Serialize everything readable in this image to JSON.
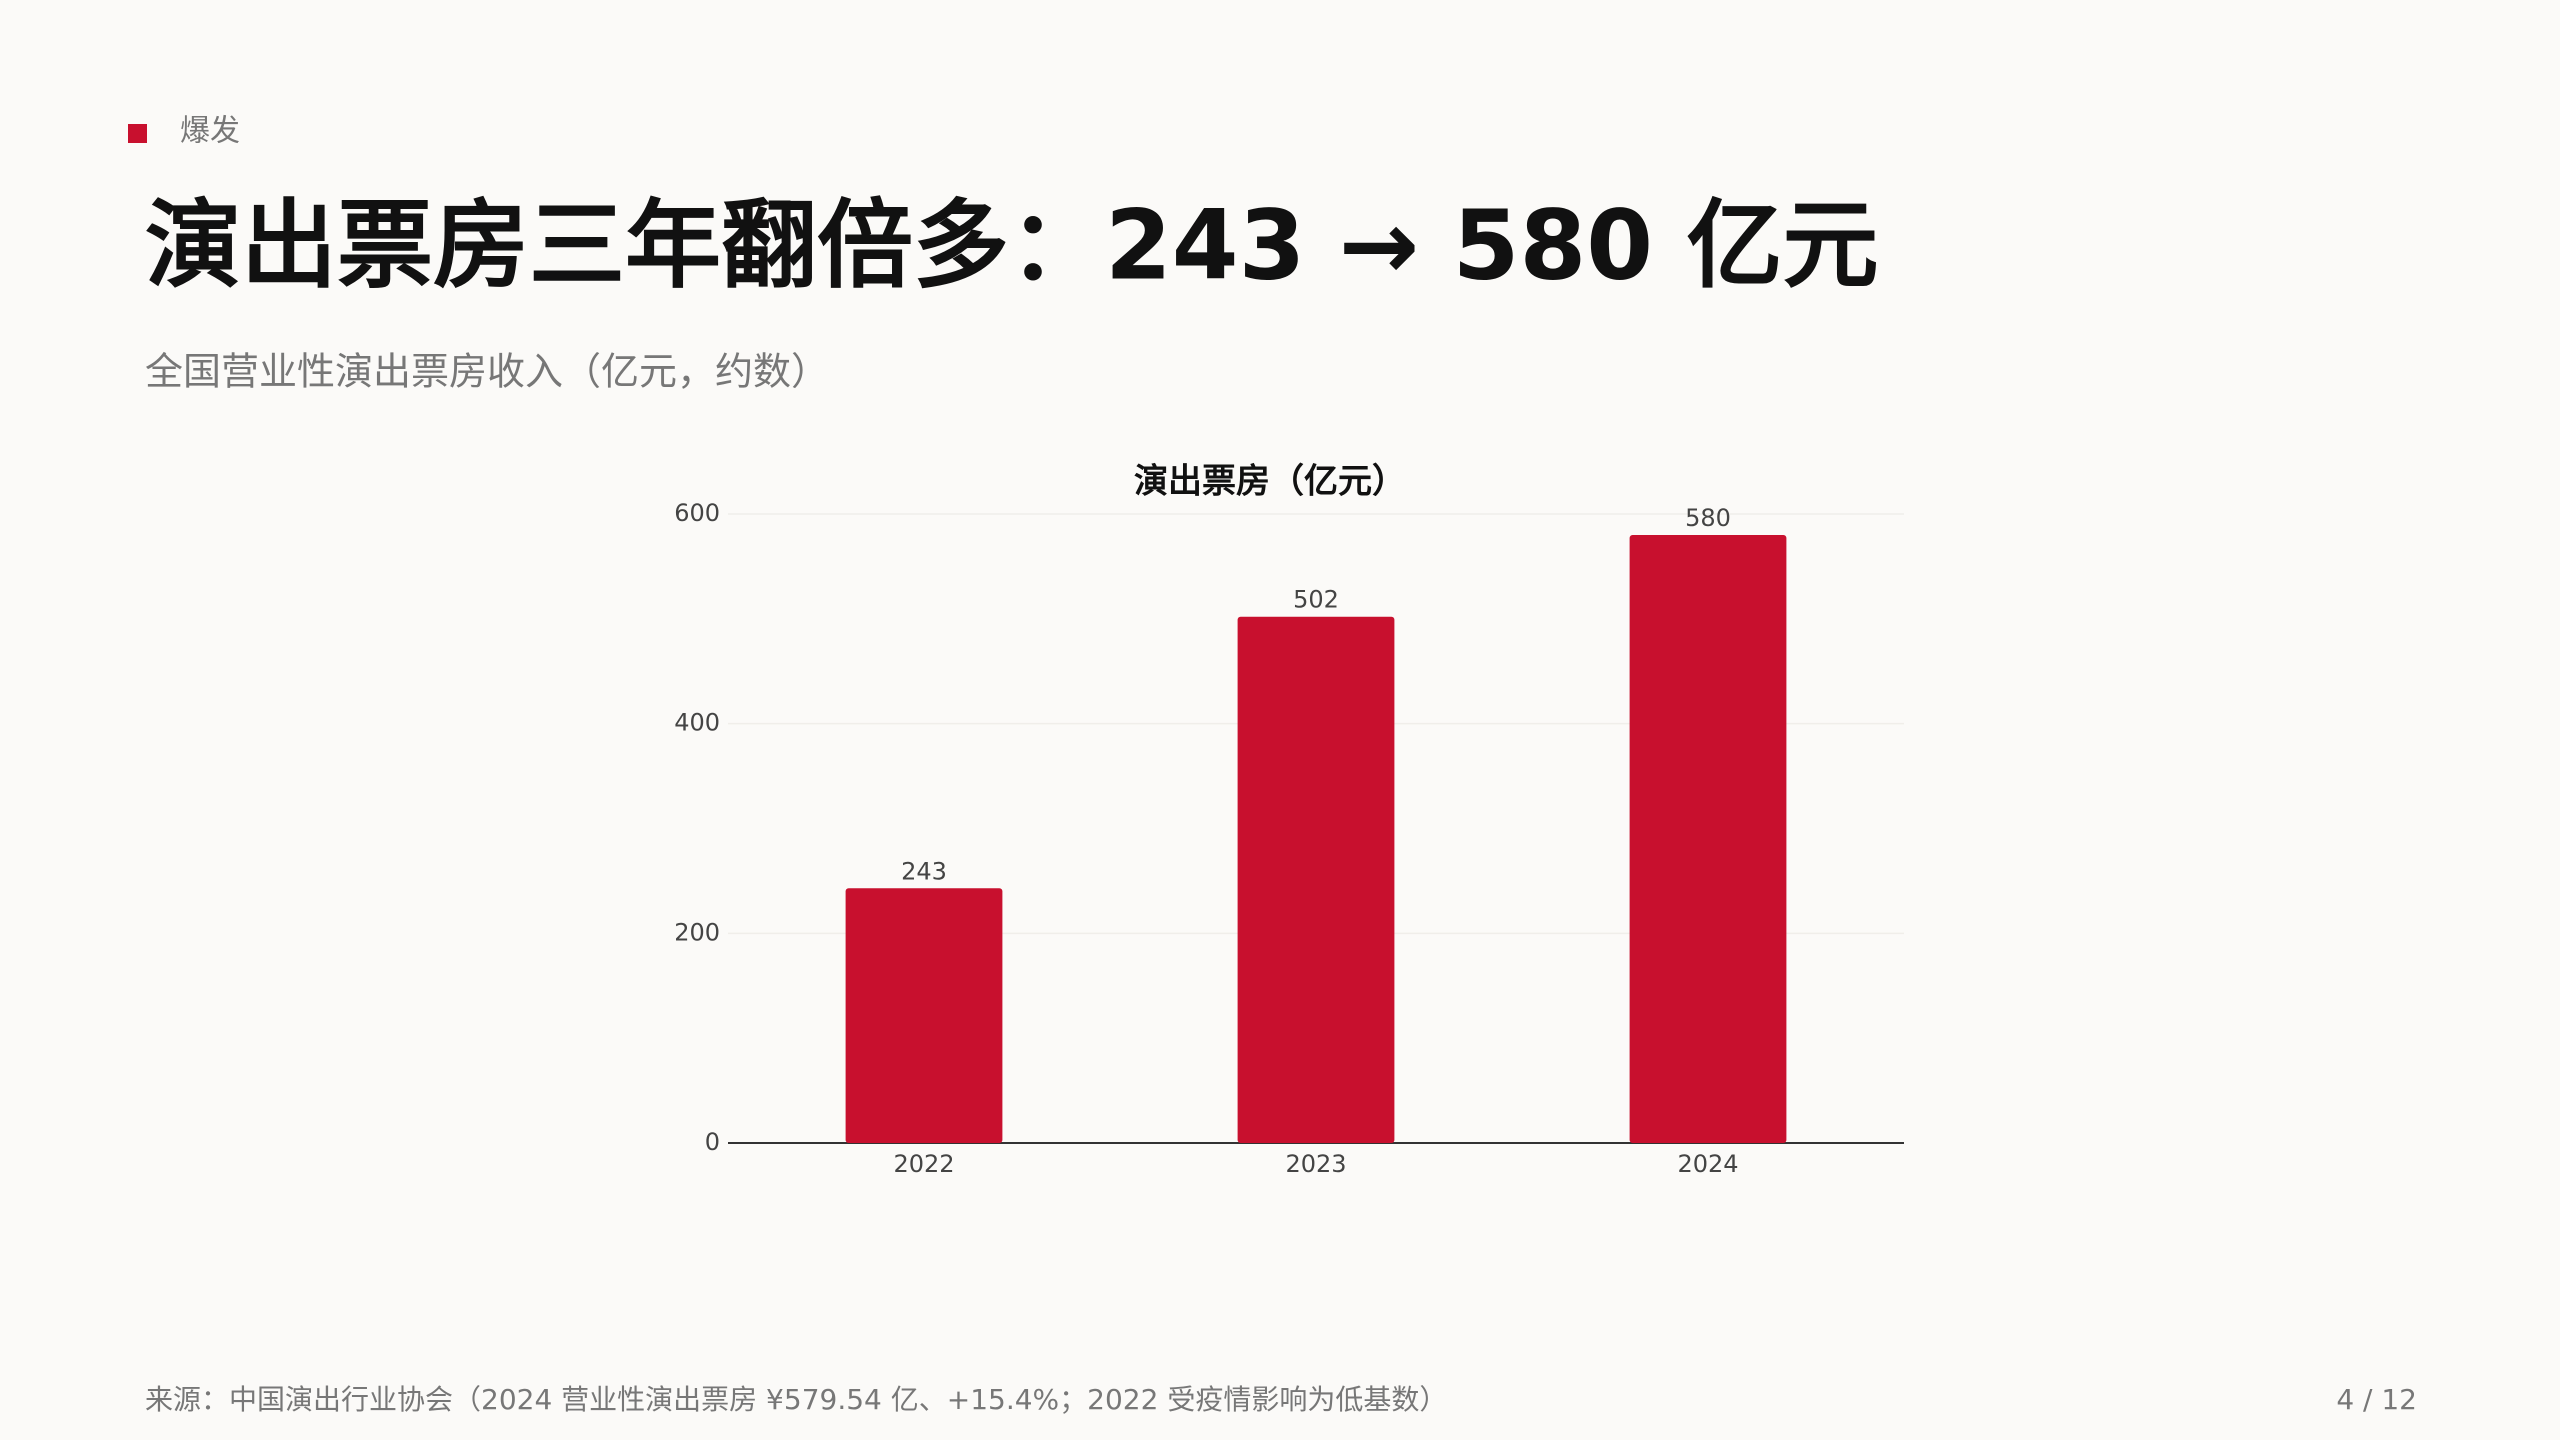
{
  "section_tag": "爆发",
  "headline": "演出票房三年翻倍多：243 → 580 亿元",
  "subtitle": "全国营业性演出票房收入（亿元，约数）",
  "source": "来源：中国演出行业协会（2024 营业性演出票房 ¥579.54 亿、+15.4%；2022 受疫情影响为低基数）",
  "page_number": "4 / 12",
  "chart_data": {
    "type": "bar",
    "title": "演出票房（亿元）",
    "categories": [
      "2022",
      "2023",
      "2024"
    ],
    "values": [
      243,
      502,
      580
    ],
    "color": "#c8102e",
    "ylim": [
      0,
      600
    ],
    "yticks": [
      0,
      200,
      400,
      600
    ],
    "grid": true
  }
}
